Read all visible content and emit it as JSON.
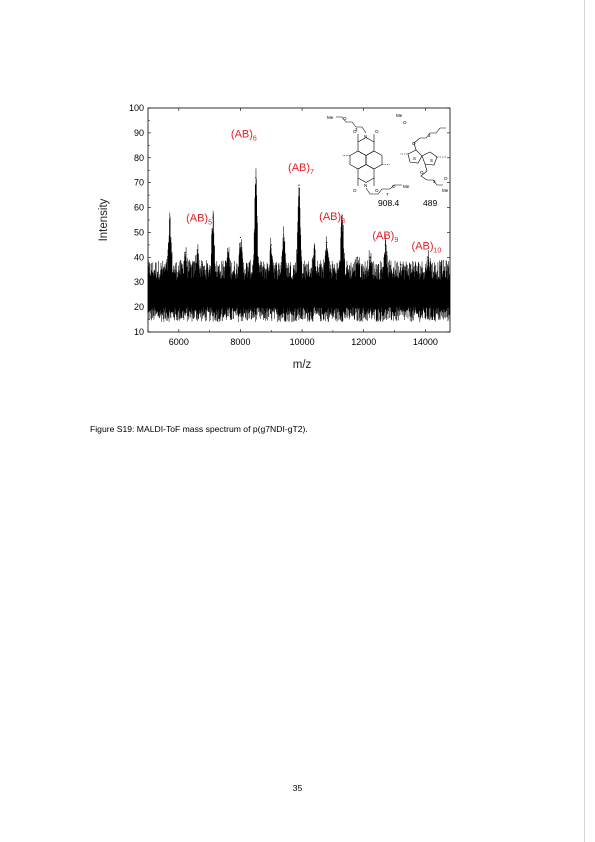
{
  "caption": "Figure S19: MALDI-ToF mass spectrum of p(g7NDI-gT2).",
  "page_number": "35",
  "chart_data": {
    "type": "line",
    "title": "",
    "xlabel": "m/z",
    "ylabel": "Intensity",
    "xlim": [
      5000,
      14800
    ],
    "ylim": [
      10,
      100
    ],
    "x_ticks": [
      6000,
      8000,
      10000,
      12000,
      14000
    ],
    "y_ticks": [
      10,
      20,
      30,
      40,
      50,
      60,
      70,
      80,
      90,
      100
    ],
    "baseline_range": [
      14,
      35
    ],
    "grid": false,
    "legend": "none",
    "line_color": "#000000",
    "peak_spacing": 1397.4,
    "peaks": [
      {
        "x": 5710,
        "y": 54
      },
      {
        "x": 6210,
        "y": 42
      },
      {
        "x": 6600,
        "y": 43
      },
      {
        "x": 7110,
        "y": 56,
        "label": "(AB)",
        "sub": "5"
      },
      {
        "x": 7600,
        "y": 42
      },
      {
        "x": 8000,
        "y": 48
      },
      {
        "x": 8500,
        "y": 72,
        "label": "(AB)",
        "sub": "6"
      },
      {
        "x": 9000,
        "y": 45
      },
      {
        "x": 9400,
        "y": 49
      },
      {
        "x": 9900,
        "y": 69,
        "label": "(AB)",
        "sub": "7"
      },
      {
        "x": 10400,
        "y": 42
      },
      {
        "x": 10800,
        "y": 46
      },
      {
        "x": 11300,
        "y": 57,
        "label": "(AB)",
        "sub": "8"
      },
      {
        "x": 11800,
        "y": 40
      },
      {
        "x": 12200,
        "y": 40
      },
      {
        "x": 12700,
        "y": 45,
        "label": "(AB)",
        "sub": "9"
      },
      {
        "x": 13200,
        "y": 37
      },
      {
        "x": 13600,
        "y": 36
      },
      {
        "x": 14100,
        "y": 40,
        "label": "(AB)",
        "sub": "10"
      }
    ],
    "label_color": "#e0202a",
    "inset": {
      "mass_A": "908.4",
      "mass_B": "489",
      "me_label": "Me",
      "o_label": "O",
      "n_label": "N",
      "s_label": "S",
      "repeat_label": "3",
      "repeat_label_2": "7"
    }
  }
}
